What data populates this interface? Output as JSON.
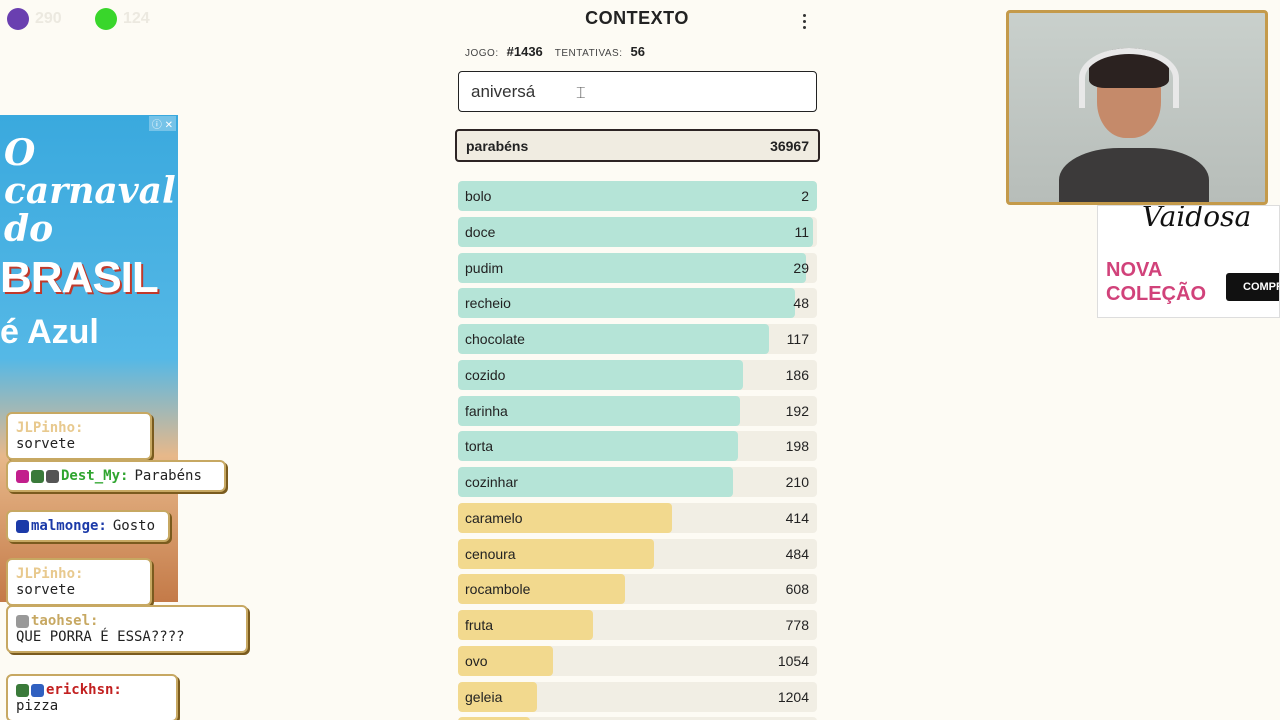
{
  "counters": [
    {
      "color": "#6a3fb0",
      "value": "290"
    },
    {
      "color": "#39d62b",
      "value": "124"
    }
  ],
  "game": {
    "title": "CONTEXTO",
    "game_label": "JOGO:",
    "game_number": "#1436",
    "attempts_label": "TENTATIVAS:",
    "attempts_value": "56",
    "input_value": "aniversá",
    "current_guess": {
      "word": "parabéns",
      "rank": "36967"
    }
  },
  "guesses": [
    {
      "word": "bolo",
      "rank": "2",
      "fill": 1.0,
      "color": "#b5e4d7"
    },
    {
      "word": "doce",
      "rank": "11",
      "fill": 0.99,
      "color": "#b5e4d7"
    },
    {
      "word": "pudim",
      "rank": "29",
      "fill": 0.97,
      "color": "#b5e4d7"
    },
    {
      "word": "recheio",
      "rank": "48",
      "fill": 0.94,
      "color": "#b5e4d7"
    },
    {
      "word": "chocolate",
      "rank": "117",
      "fill": 0.865,
      "color": "#b5e4d7"
    },
    {
      "word": "cozido",
      "rank": "186",
      "fill": 0.795,
      "color": "#b5e4d7"
    },
    {
      "word": "farinha",
      "rank": "192",
      "fill": 0.785,
      "color": "#b5e4d7"
    },
    {
      "word": "torta",
      "rank": "198",
      "fill": 0.78,
      "color": "#b5e4d7"
    },
    {
      "word": "cozinhar",
      "rank": "210",
      "fill": 0.765,
      "color": "#b5e4d7"
    },
    {
      "word": "caramelo",
      "rank": "414",
      "fill": 0.595,
      "color": "#f2d98e"
    },
    {
      "word": "cenoura",
      "rank": "484",
      "fill": 0.545,
      "color": "#f2d98e"
    },
    {
      "word": "rocambole",
      "rank": "608",
      "fill": 0.465,
      "color": "#f2d98e"
    },
    {
      "word": "fruta",
      "rank": "778",
      "fill": 0.375,
      "color": "#f2d98e"
    },
    {
      "word": "ovo",
      "rank": "1054",
      "fill": 0.265,
      "color": "#f2d98e"
    },
    {
      "word": "geleia",
      "rank": "1204",
      "fill": 0.22,
      "color": "#f2d98e"
    },
    {
      "word": "",
      "rank": "",
      "fill": 0.2,
      "color": "#f2d98e"
    }
  ],
  "ad_left": {
    "line1": "O carnaval do",
    "line2": "BRASIL",
    "line3": "é Azul",
    "choices": "ⓘ ✕"
  },
  "chat": [
    {
      "user": "JLPinho:",
      "message": "sorvete",
      "user_color": "#e8c98e",
      "badges": []
    },
    {
      "user": "Dest_My:",
      "message": "Parabéns",
      "user_color": "#2fa52f",
      "badges": [
        "#c21f8c",
        "#3a7a3a",
        "#555"
      ]
    },
    {
      "user": "malmonge:",
      "message": "Gosto",
      "user_color": "#1b3aa8",
      "badges": [
        "#1b3aa8"
      ]
    },
    {
      "user": "JLPinho:",
      "message": "sorvete",
      "user_color": "#e8c98e",
      "badges": []
    },
    {
      "user": "taohsel:",
      "message": "QUE PORRA É ESSA????",
      "user_color": "#c7a862",
      "badges": [
        "#999"
      ]
    },
    {
      "user": "erickhsn:",
      "message": "pizza",
      "user_color": "#c22020",
      "badges": [
        "#3a7a3a",
        "#3060c0"
      ]
    }
  ],
  "ad_right": {
    "script": "Vaidosa",
    "nova": "NOVA",
    "colecao": "COLEÇÃO",
    "cta": "COMPR"
  }
}
